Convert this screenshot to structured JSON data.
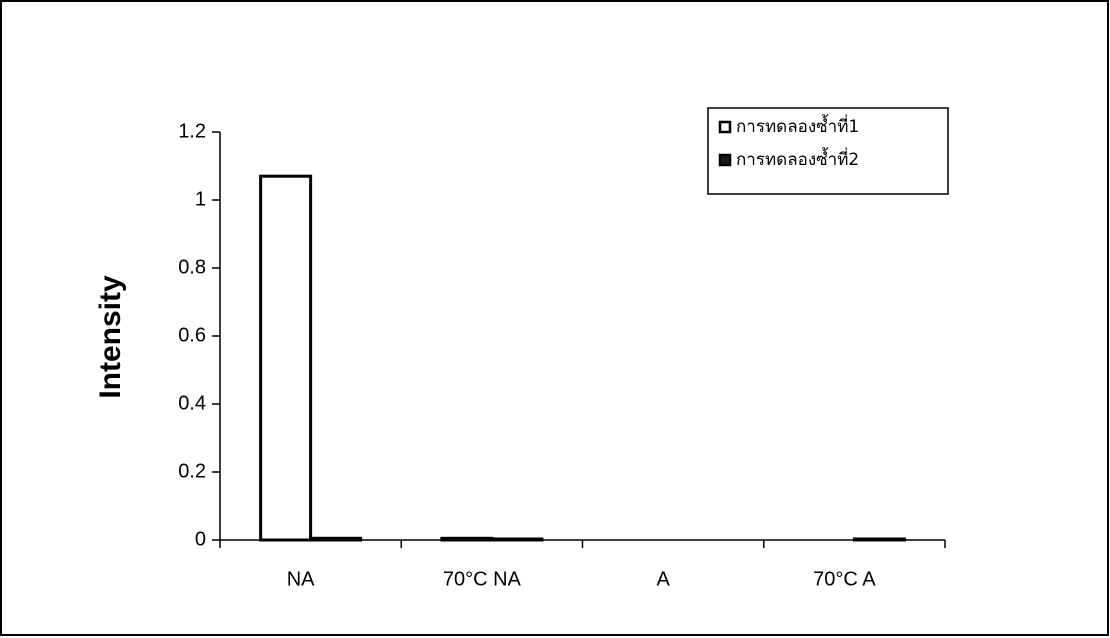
{
  "chart_data": {
    "type": "bar",
    "y_label": "Intensity",
    "categories": [
      "NA",
      "70°C NA",
      "A",
      "70°C A"
    ],
    "series": [
      {
        "name": "การทดลองซ้ำที่1",
        "color": "#ffffff",
        "values": [
          1.07,
          0.005,
          0,
          0
        ]
      },
      {
        "name": "การทดลองซ้ำที่2",
        "color": "#1a1a1a",
        "values": [
          0.005,
          0.003,
          0,
          0.003
        ]
      }
    ],
    "ylim": [
      0,
      1.2
    ],
    "yticks": [
      0,
      0.2,
      0.4,
      0.6,
      0.8,
      1,
      1.2
    ],
    "legend": "top-right"
  }
}
